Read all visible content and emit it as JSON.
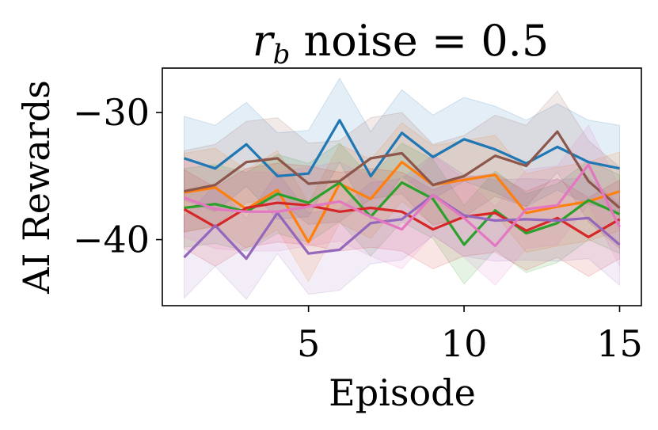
{
  "chart_data": {
    "type": "line",
    "title_main": "r",
    "title_sub": "b",
    "title_rest": " noise = 0.5",
    "xlabel": "Episode",
    "ylabel": "AI Rewards",
    "xlim": [
      0.3,
      15.7
    ],
    "ylim": [
      -45.2,
      -26.5
    ],
    "x_ticks": [
      5,
      10,
      15
    ],
    "x_tick_labels": [
      "5",
      "10",
      "15"
    ],
    "y_ticks": [
      -30,
      -40
    ],
    "y_tick_labels": [
      "−30",
      "−40"
    ],
    "grid": false,
    "legend": "none",
    "x": [
      1,
      2,
      3,
      4,
      5,
      6,
      7,
      8,
      9,
      10,
      11,
      12,
      13,
      14,
      15
    ],
    "series": [
      {
        "name": "blue",
        "color": "#1f77b4",
        "values": [
          -33.6,
          -34.4,
          -32.5,
          -35.0,
          -34.8,
          -30.6,
          -35.0,
          -31.6,
          -33.5,
          -32.1,
          -32.9,
          -34.0,
          -32.7,
          -33.9,
          -34.4
        ],
        "upper": [
          -30.3,
          -31.0,
          -29.2,
          -31.6,
          -31.4,
          -27.3,
          -31.5,
          -28.2,
          -30.2,
          -28.8,
          -29.5,
          -30.6,
          -29.3,
          -30.6,
          -31.0
        ],
        "lower": [
          -36.9,
          -37.8,
          -35.8,
          -38.4,
          -38.2,
          -33.9,
          -38.4,
          -35.0,
          -36.8,
          -35.4,
          -36.3,
          -37.4,
          -36.1,
          -37.2,
          -37.8
        ]
      },
      {
        "name": "orange",
        "color": "#ff7f0e",
        "values": [
          -36.3,
          -35.9,
          -37.6,
          -36.1,
          -40.2,
          -35.6,
          -36.8,
          -33.9,
          -35.7,
          -35.3,
          -34.9,
          -37.9,
          -37.4,
          -37.0,
          -36.2
        ],
        "upper": [
          -33.2,
          -32.8,
          -34.5,
          -33.0,
          -37.1,
          -32.5,
          -33.7,
          -30.8,
          -32.6,
          -32.2,
          -31.8,
          -34.8,
          -34.3,
          -33.9,
          -33.1
        ],
        "lower": [
          -39.4,
          -39.0,
          -40.7,
          -39.2,
          -43.3,
          -38.7,
          -39.9,
          -37.0,
          -38.8,
          -38.4,
          -38.0,
          -41.0,
          -40.5,
          -40.1,
          -39.3
        ]
      },
      {
        "name": "green",
        "color": "#2ca02c",
        "values": [
          -37.5,
          -37.2,
          -37.8,
          -36.4,
          -37.1,
          -35.5,
          -38.2,
          -35.5,
          -36.8,
          -40.4,
          -37.7,
          -39.5,
          -38.7,
          -36.9,
          -38.0
        ],
        "upper": [
          -34.4,
          -34.1,
          -34.7,
          -33.3,
          -34.0,
          -32.4,
          -35.1,
          -32.4,
          -33.7,
          -37.3,
          -34.6,
          -36.4,
          -35.6,
          -33.8,
          -34.9
        ],
        "lower": [
          -40.6,
          -40.3,
          -40.9,
          -39.5,
          -40.2,
          -38.6,
          -41.3,
          -38.6,
          -39.9,
          -43.5,
          -40.8,
          -42.6,
          -41.8,
          -40.0,
          -41.1
        ]
      },
      {
        "name": "red",
        "color": "#d62728",
        "values": [
          -37.6,
          -39.0,
          -37.5,
          -37.1,
          -37.3,
          -37.8,
          -37.5,
          -37.8,
          -39.2,
          -38.2,
          -37.9,
          -39.3,
          -38.3,
          -39.8,
          -38.4
        ],
        "upper": [
          -34.5,
          -35.9,
          -34.4,
          -34.0,
          -34.2,
          -34.7,
          -34.4,
          -34.7,
          -36.1,
          -35.1,
          -34.8,
          -36.2,
          -35.2,
          -36.7,
          -35.3
        ],
        "lower": [
          -40.7,
          -42.1,
          -40.6,
          -40.2,
          -40.4,
          -40.9,
          -40.6,
          -40.9,
          -42.3,
          -41.3,
          -41.0,
          -42.4,
          -41.4,
          -42.9,
          -41.5
        ]
      },
      {
        "name": "purple",
        "color": "#9467bd",
        "values": [
          -41.4,
          -38.9,
          -41.5,
          -37.9,
          -41.1,
          -40.8,
          -38.7,
          -38.4,
          -36.5,
          -38.1,
          -38.5,
          -38.4,
          -38.5,
          -38.3,
          -40.4
        ],
        "upper": [
          -38.2,
          -35.7,
          -38.3,
          -34.7,
          -37.9,
          -37.6,
          -35.5,
          -35.2,
          -33.3,
          -34.9,
          -35.3,
          -35.2,
          -35.3,
          -35.1,
          -37.2
        ],
        "lower": [
          -44.6,
          -42.1,
          -44.7,
          -41.1,
          -44.3,
          -44.0,
          -41.9,
          -41.6,
          -39.7,
          -41.3,
          -41.7,
          -41.6,
          -41.7,
          -41.5,
          -43.6
        ]
      },
      {
        "name": "brown",
        "color": "#8c564b",
        "values": [
          -36.2,
          -35.7,
          -33.9,
          -33.6,
          -35.6,
          -35.4,
          -33.6,
          -33.2,
          -35.7,
          -35.0,
          -33.4,
          -34.2,
          -31.5,
          -35.4,
          -37.5
        ],
        "upper": [
          -33.0,
          -32.5,
          -30.7,
          -30.4,
          -32.4,
          -32.2,
          -30.4,
          -30.0,
          -32.5,
          -31.8,
          -30.2,
          -31.0,
          -28.3,
          -32.2,
          -34.3
        ],
        "lower": [
          -39.4,
          -38.9,
          -37.1,
          -36.8,
          -38.8,
          -38.6,
          -36.8,
          -36.4,
          -38.9,
          -38.2,
          -36.6,
          -37.4,
          -34.7,
          -38.6,
          -40.7
        ]
      },
      {
        "name": "pink",
        "color": "#e377c2",
        "values": [
          -36.7,
          -37.6,
          -37.8,
          -37.8,
          -37.4,
          -37.0,
          -38.2,
          -39.2,
          -36.5,
          -38.3,
          -40.5,
          -37.6,
          -37.3,
          -34.1,
          -39.0
        ],
        "upper": [
          -33.6,
          -34.5,
          -34.7,
          -34.7,
          -34.3,
          -33.9,
          -35.1,
          -36.1,
          -33.4,
          -35.2,
          -37.4,
          -34.5,
          -34.2,
          -31.0,
          -35.9
        ],
        "lower": [
          -39.8,
          -40.7,
          -40.9,
          -40.9,
          -40.5,
          -40.1,
          -41.3,
          -42.3,
          -39.6,
          -41.4,
          -43.6,
          -40.7,
          -40.4,
          -37.2,
          -42.1
        ]
      }
    ]
  }
}
